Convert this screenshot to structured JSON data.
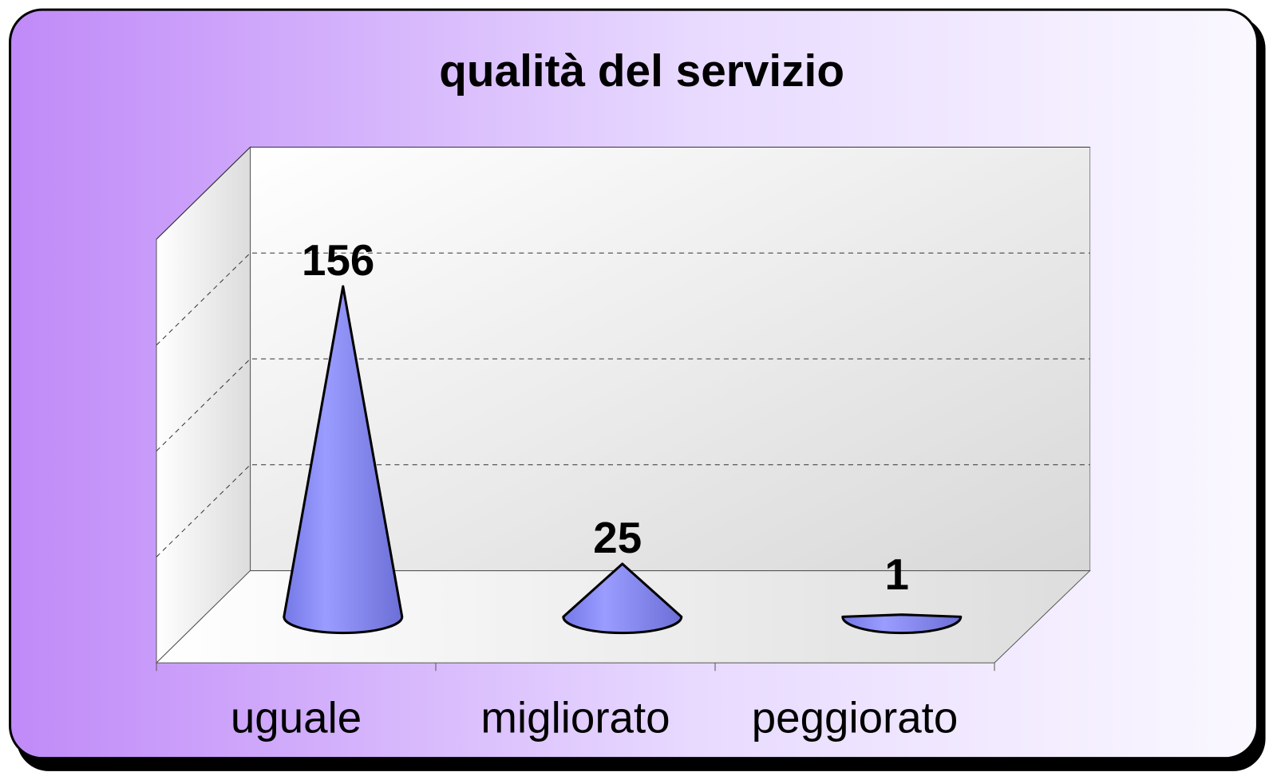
{
  "chart_data": {
    "type": "cone3d",
    "title": "qualità del servizio",
    "categories": [
      "uguale",
      "migliorato",
      "peggiorato"
    ],
    "values": [
      156,
      25,
      1
    ],
    "color": "#8a8cf2",
    "ylim": [
      0,
      200
    ],
    "yticks": [
      0,
      50,
      100,
      150,
      200
    ],
    "grid": true
  }
}
